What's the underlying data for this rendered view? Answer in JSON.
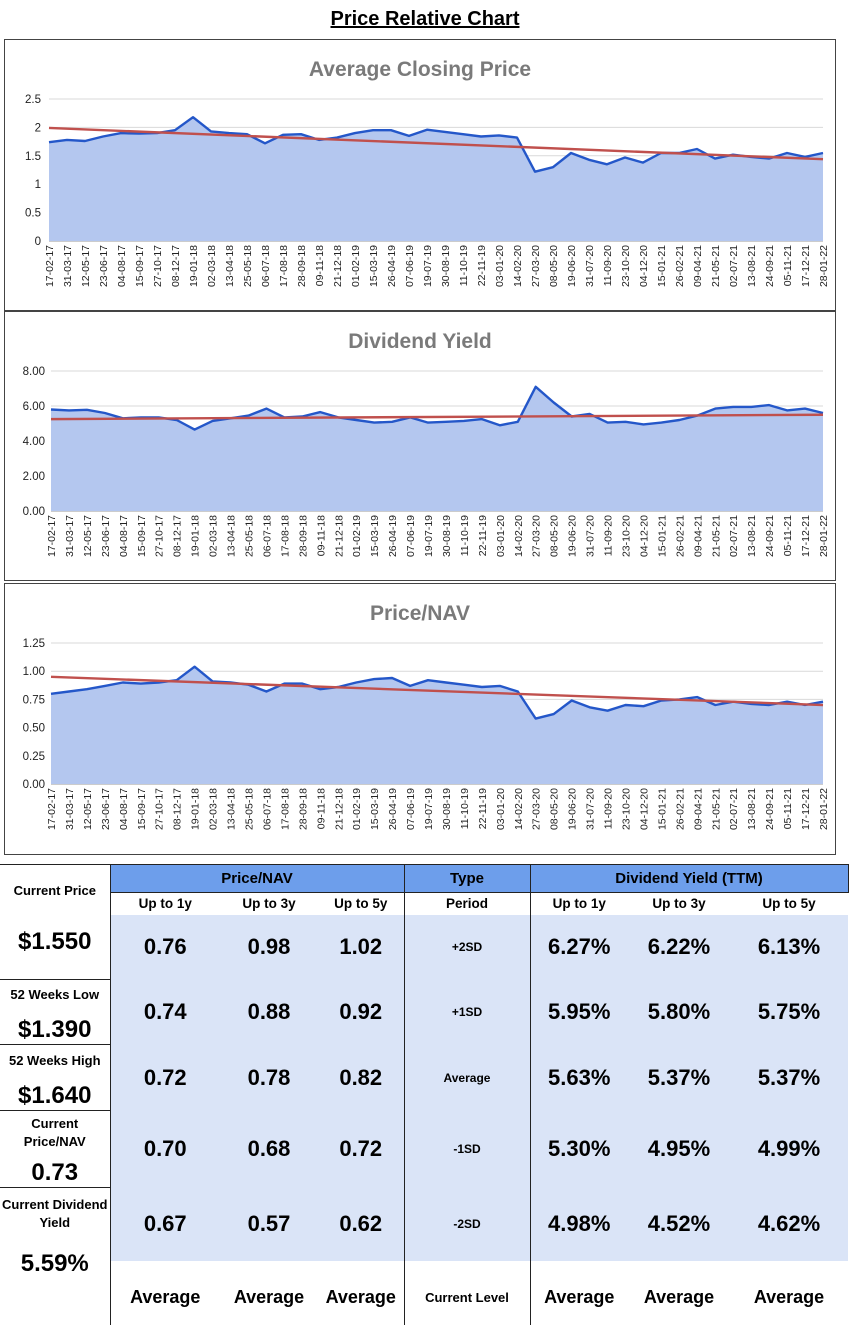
{
  "page_title": "Price Relative Chart",
  "colors": {
    "area": "#b4c7ef",
    "line": "#2457c9",
    "trend": "#c0504d",
    "header": "#6d9eeb",
    "band": "#dae4f7"
  },
  "x_labels": [
    "17-02-17",
    "31-03-17",
    "12-05-17",
    "23-06-17",
    "04-08-17",
    "15-09-17",
    "27-10-17",
    "08-12-17",
    "19-01-18",
    "02-03-18",
    "13-04-18",
    "25-05-18",
    "06-07-18",
    "17-08-18",
    "28-09-18",
    "09-11-18",
    "21-12-18",
    "01-02-19",
    "15-03-19",
    "26-04-19",
    "07-06-19",
    "19-07-19",
    "30-08-19",
    "11-10-19",
    "22-11-19",
    "03-01-20",
    "14-02-20",
    "27-03-20",
    "08-05-20",
    "19-06-20",
    "31-07-20",
    "11-09-20",
    "23-10-20",
    "04-12-20",
    "15-01-21",
    "26-02-21",
    "09-04-21",
    "21-05-21",
    "02-07-21",
    "13-08-21",
    "24-09-21",
    "05-11-21",
    "17-12-21",
    "28-01-22"
  ],
  "chart_data": [
    {
      "type": "area",
      "title": "Average Closing Price",
      "ylim": [
        0,
        2.5
      ],
      "yticks": [
        "0",
        "0.5",
        "1",
        "1.5",
        "2",
        "2.5"
      ],
      "values": [
        1.74,
        1.78,
        1.76,
        1.84,
        1.9,
        1.89,
        1.9,
        1.95,
        2.18,
        1.93,
        1.9,
        1.88,
        1.72,
        1.87,
        1.88,
        1.78,
        1.82,
        1.9,
        1.95,
        1.95,
        1.85,
        1.96,
        1.92,
        1.88,
        1.84,
        1.86,
        1.82,
        1.22,
        1.3,
        1.55,
        1.43,
        1.35,
        1.47,
        1.38,
        1.55,
        1.55,
        1.62,
        1.45,
        1.52,
        1.48,
        1.45,
        1.55,
        1.48,
        1.55
      ],
      "trend": [
        1.99,
        1.44
      ]
    },
    {
      "type": "area",
      "title": "Dividend Yield",
      "ylim": [
        0,
        8
      ],
      "yticks": [
        "0.00",
        "2.00",
        "4.00",
        "6.00",
        "8.00"
      ],
      "values": [
        5.8,
        5.75,
        5.78,
        5.6,
        5.3,
        5.35,
        5.35,
        5.2,
        4.65,
        5.15,
        5.3,
        5.45,
        5.85,
        5.35,
        5.4,
        5.65,
        5.35,
        5.2,
        5.05,
        5.1,
        5.35,
        5.05,
        5.1,
        5.15,
        5.25,
        4.9,
        5.1,
        7.1,
        6.2,
        5.4,
        5.55,
        5.05,
        5.1,
        4.95,
        5.05,
        5.2,
        5.45,
        5.85,
        5.95,
        5.95,
        6.05,
        5.75,
        5.85,
        5.6
      ],
      "trend": [
        5.25,
        5.5
      ]
    },
    {
      "type": "area",
      "title": "Price/NAV",
      "ylim": [
        0,
        1.25
      ],
      "yticks": [
        "0.00",
        "0.25",
        "0.50",
        "0.75",
        "1.00",
        "1.25"
      ],
      "values": [
        0.8,
        0.82,
        0.84,
        0.87,
        0.9,
        0.89,
        0.9,
        0.92,
        1.04,
        0.91,
        0.9,
        0.88,
        0.82,
        0.89,
        0.89,
        0.84,
        0.86,
        0.9,
        0.93,
        0.94,
        0.87,
        0.92,
        0.9,
        0.88,
        0.86,
        0.87,
        0.82,
        0.58,
        0.62,
        0.74,
        0.68,
        0.65,
        0.7,
        0.69,
        0.74,
        0.75,
        0.77,
        0.7,
        0.73,
        0.71,
        0.7,
        0.73,
        0.7,
        0.73
      ],
      "trend": [
        0.95,
        0.7
      ]
    }
  ],
  "summary": {
    "current_price_label": "Current Price",
    "current_price": "$1.550",
    "low_label": "52 Weeks Low",
    "low": "$1.390",
    "high_label": "52 Weeks High",
    "high": "$1.640",
    "pnav_label": "Current Price/NAV",
    "pnav": "0.73",
    "dy_label": "Current Dividend Yield",
    "dy": "5.59%"
  },
  "table": {
    "pnav_header": "Price/NAV",
    "type_header": "Type",
    "dy_header": "Dividend Yield (TTM)",
    "period_label": "Period",
    "col_labels": [
      "Up to 1y",
      "Up to 3y",
      "Up to 5y"
    ],
    "rows": [
      {
        "type": "+2SD",
        "pnav": [
          "0.76",
          "0.98",
          "1.02"
        ],
        "dy": [
          "6.27%",
          "6.22%",
          "6.13%"
        ]
      },
      {
        "type": "+1SD",
        "pnav": [
          "0.74",
          "0.88",
          "0.92"
        ],
        "dy": [
          "5.95%",
          "5.80%",
          "5.75%"
        ]
      },
      {
        "type": "Average",
        "pnav": [
          "0.72",
          "0.78",
          "0.82"
        ],
        "dy": [
          "5.63%",
          "5.37%",
          "5.37%"
        ]
      },
      {
        "type": "-1SD",
        "pnav": [
          "0.70",
          "0.68",
          "0.72"
        ],
        "dy": [
          "5.30%",
          "4.95%",
          "4.99%"
        ]
      },
      {
        "type": "-2SD",
        "pnav": [
          "0.67",
          "0.57",
          "0.62"
        ],
        "dy": [
          "4.98%",
          "4.52%",
          "4.62%"
        ]
      }
    ],
    "current_level_label": "Current Level",
    "current_level_pnav": [
      "Average",
      "Average",
      "Average"
    ],
    "current_level_dy": [
      "Average",
      "Average",
      "Average"
    ]
  }
}
